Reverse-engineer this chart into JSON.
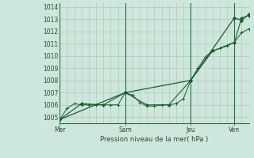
{
  "bg_color": "#cce8dd",
  "grid_color": "#aaccbb",
  "vgrid_color": "#cc9999",
  "line_color": "#1a5c2a",
  "xlabel": "Pression niveau de la mer( hPa )",
  "ylim": [
    1004.5,
    1014.3
  ],
  "yticks": [
    1005,
    1006,
    1007,
    1008,
    1009,
    1010,
    1011,
    1012,
    1013,
    1014
  ],
  "day_labels": [
    "Mer",
    "Sam",
    "Jeu",
    "Ven"
  ],
  "vline_color": "#336644",
  "bottom_color": "#336644",
  "series1_x": [
    0,
    1,
    2,
    3,
    4,
    5,
    6,
    7,
    8,
    9,
    10,
    11,
    12,
    13,
    14,
    15,
    16,
    17,
    18,
    19,
    20,
    21,
    22,
    23,
    24,
    25,
    26
  ],
  "series1_y": [
    1004.8,
    1005.7,
    1006.1,
    1006.0,
    1006.0,
    1006.0,
    1006.0,
    1006.0,
    1006.0,
    1007.0,
    1006.8,
    1006.2,
    1005.9,
    1005.9,
    1006.0,
    1006.0,
    1006.1,
    1006.5,
    1008.0,
    1009.0,
    1009.9,
    1010.4,
    1010.6,
    1010.8,
    1011.1,
    1011.9,
    1012.2
  ],
  "series2_x": [
    0,
    3,
    6,
    9,
    12,
    15,
    18,
    21,
    24,
    25,
    26
  ],
  "series2_y": [
    1004.8,
    1006.1,
    1006.0,
    1007.0,
    1006.0,
    1006.0,
    1008.0,
    1010.4,
    1011.1,
    1013.1,
    1013.3
  ],
  "series3_x": [
    0,
    9,
    18,
    24,
    25,
    26
  ],
  "series3_y": [
    1004.8,
    1007.0,
    1008.0,
    1013.1,
    1012.9,
    1013.4
  ]
}
